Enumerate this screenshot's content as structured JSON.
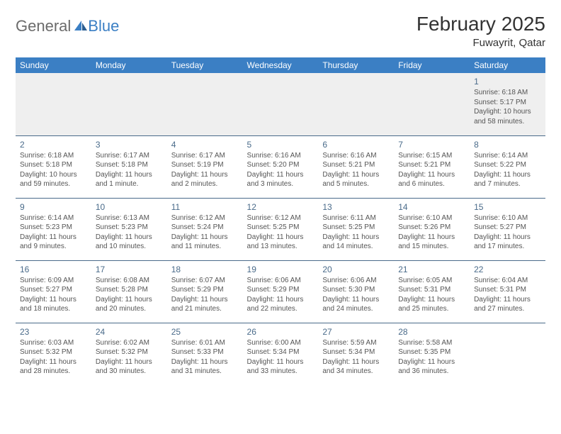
{
  "logo": {
    "text_gray": "General",
    "text_blue": "Blue"
  },
  "header": {
    "month_title": "February 2025",
    "location": "Fuwayrit, Qatar"
  },
  "colors": {
    "header_bar": "#3b7fc4",
    "header_text": "#ffffff",
    "daynum": "#4a6b8a",
    "row_divider": "#4a6b8a",
    "blank_bg": "#efefef",
    "body_text": "#555555",
    "logo_gray": "#6b6b6b"
  },
  "day_names": [
    "Sunday",
    "Monday",
    "Tuesday",
    "Wednesday",
    "Thursday",
    "Friday",
    "Saturday"
  ],
  "weeks": [
    [
      null,
      null,
      null,
      null,
      null,
      null,
      {
        "n": "1",
        "sr": "Sunrise: 6:18 AM",
        "ss": "Sunset: 5:17 PM",
        "dl": "Daylight: 10 hours and 58 minutes."
      }
    ],
    [
      {
        "n": "2",
        "sr": "Sunrise: 6:18 AM",
        "ss": "Sunset: 5:18 PM",
        "dl": "Daylight: 10 hours and 59 minutes."
      },
      {
        "n": "3",
        "sr": "Sunrise: 6:17 AM",
        "ss": "Sunset: 5:18 PM",
        "dl": "Daylight: 11 hours and 1 minute."
      },
      {
        "n": "4",
        "sr": "Sunrise: 6:17 AM",
        "ss": "Sunset: 5:19 PM",
        "dl": "Daylight: 11 hours and 2 minutes."
      },
      {
        "n": "5",
        "sr": "Sunrise: 6:16 AM",
        "ss": "Sunset: 5:20 PM",
        "dl": "Daylight: 11 hours and 3 minutes."
      },
      {
        "n": "6",
        "sr": "Sunrise: 6:16 AM",
        "ss": "Sunset: 5:21 PM",
        "dl": "Daylight: 11 hours and 5 minutes."
      },
      {
        "n": "7",
        "sr": "Sunrise: 6:15 AM",
        "ss": "Sunset: 5:21 PM",
        "dl": "Daylight: 11 hours and 6 minutes."
      },
      {
        "n": "8",
        "sr": "Sunrise: 6:14 AM",
        "ss": "Sunset: 5:22 PM",
        "dl": "Daylight: 11 hours and 7 minutes."
      }
    ],
    [
      {
        "n": "9",
        "sr": "Sunrise: 6:14 AM",
        "ss": "Sunset: 5:23 PM",
        "dl": "Daylight: 11 hours and 9 minutes."
      },
      {
        "n": "10",
        "sr": "Sunrise: 6:13 AM",
        "ss": "Sunset: 5:23 PM",
        "dl": "Daylight: 11 hours and 10 minutes."
      },
      {
        "n": "11",
        "sr": "Sunrise: 6:12 AM",
        "ss": "Sunset: 5:24 PM",
        "dl": "Daylight: 11 hours and 11 minutes."
      },
      {
        "n": "12",
        "sr": "Sunrise: 6:12 AM",
        "ss": "Sunset: 5:25 PM",
        "dl": "Daylight: 11 hours and 13 minutes."
      },
      {
        "n": "13",
        "sr": "Sunrise: 6:11 AM",
        "ss": "Sunset: 5:25 PM",
        "dl": "Daylight: 11 hours and 14 minutes."
      },
      {
        "n": "14",
        "sr": "Sunrise: 6:10 AM",
        "ss": "Sunset: 5:26 PM",
        "dl": "Daylight: 11 hours and 15 minutes."
      },
      {
        "n": "15",
        "sr": "Sunrise: 6:10 AM",
        "ss": "Sunset: 5:27 PM",
        "dl": "Daylight: 11 hours and 17 minutes."
      }
    ],
    [
      {
        "n": "16",
        "sr": "Sunrise: 6:09 AM",
        "ss": "Sunset: 5:27 PM",
        "dl": "Daylight: 11 hours and 18 minutes."
      },
      {
        "n": "17",
        "sr": "Sunrise: 6:08 AM",
        "ss": "Sunset: 5:28 PM",
        "dl": "Daylight: 11 hours and 20 minutes."
      },
      {
        "n": "18",
        "sr": "Sunrise: 6:07 AM",
        "ss": "Sunset: 5:29 PM",
        "dl": "Daylight: 11 hours and 21 minutes."
      },
      {
        "n": "19",
        "sr": "Sunrise: 6:06 AM",
        "ss": "Sunset: 5:29 PM",
        "dl": "Daylight: 11 hours and 22 minutes."
      },
      {
        "n": "20",
        "sr": "Sunrise: 6:06 AM",
        "ss": "Sunset: 5:30 PM",
        "dl": "Daylight: 11 hours and 24 minutes."
      },
      {
        "n": "21",
        "sr": "Sunrise: 6:05 AM",
        "ss": "Sunset: 5:31 PM",
        "dl": "Daylight: 11 hours and 25 minutes."
      },
      {
        "n": "22",
        "sr": "Sunrise: 6:04 AM",
        "ss": "Sunset: 5:31 PM",
        "dl": "Daylight: 11 hours and 27 minutes."
      }
    ],
    [
      {
        "n": "23",
        "sr": "Sunrise: 6:03 AM",
        "ss": "Sunset: 5:32 PM",
        "dl": "Daylight: 11 hours and 28 minutes."
      },
      {
        "n": "24",
        "sr": "Sunrise: 6:02 AM",
        "ss": "Sunset: 5:32 PM",
        "dl": "Daylight: 11 hours and 30 minutes."
      },
      {
        "n": "25",
        "sr": "Sunrise: 6:01 AM",
        "ss": "Sunset: 5:33 PM",
        "dl": "Daylight: 11 hours and 31 minutes."
      },
      {
        "n": "26",
        "sr": "Sunrise: 6:00 AM",
        "ss": "Sunset: 5:34 PM",
        "dl": "Daylight: 11 hours and 33 minutes."
      },
      {
        "n": "27",
        "sr": "Sunrise: 5:59 AM",
        "ss": "Sunset: 5:34 PM",
        "dl": "Daylight: 11 hours and 34 minutes."
      },
      {
        "n": "28",
        "sr": "Sunrise: 5:58 AM",
        "ss": "Sunset: 5:35 PM",
        "dl": "Daylight: 11 hours and 36 minutes."
      },
      null
    ]
  ]
}
